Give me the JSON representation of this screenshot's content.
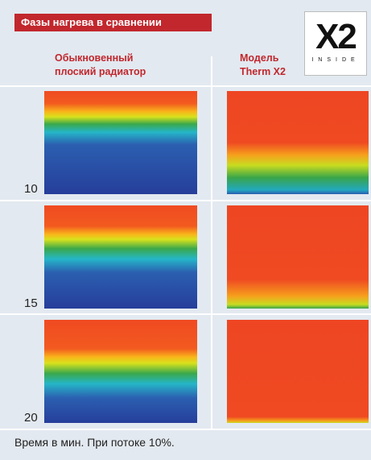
{
  "header": {
    "title": "Фазы нагрева в сравнении",
    "logo": {
      "mark": "X2",
      "text": "INSIDE"
    }
  },
  "columns": [
    {
      "lines": [
        "Обыкновенный",
        "плоский радиатор"
      ]
    },
    {
      "lines": [
        "Модель",
        "Therm X2"
      ]
    }
  ],
  "rows": [
    {
      "label": "10"
    },
    {
      "label": "15"
    },
    {
      "label": "20"
    }
  ],
  "footer": "Время в мин. При потоке 10%."
}
